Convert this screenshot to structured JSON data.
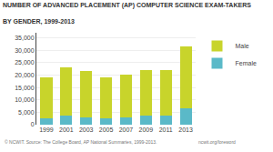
{
  "chart_data": {
    "type": "bar",
    "stacked": true,
    "title": "NUMBER OF ADVANCED PLACEMENT (AP) COMPUTER SCIENCE EXAM-TAKERS",
    "subtitle": "BY GENDER, 1999-2013",
    "categories": [
      "1999",
      "2001",
      "2003",
      "2005",
      "2007",
      "2009",
      "2011",
      "2013"
    ],
    "series": [
      {
        "name": "Female",
        "color": "#5ab9c8",
        "values": [
          2500,
          3500,
          3000,
          2500,
          3000,
          3500,
          3500,
          6500
        ]
      },
      {
        "name": "Male",
        "color": "#c8d42b",
        "values": [
          16500,
          19500,
          18500,
          16500,
          17000,
          18500,
          18500,
          25000
        ]
      }
    ],
    "ylim": [
      0,
      37000
    ],
    "yticks": [
      0,
      {
        "value": 5000,
        "label": "5,000"
      },
      {
        "value": 10000,
        "label": "10,000"
      },
      {
        "value": 15000,
        "label": "15,000"
      },
      {
        "value": 20000,
        "label": "20,000"
      },
      {
        "value": 25000,
        "label": "25,000"
      },
      {
        "value": 30000,
        "label": "30,000"
      },
      {
        "value": 35000,
        "label": "35,000"
      }
    ],
    "grid": true,
    "legend": "upper right",
    "annotations": [
      "© NCWIT. Source: The College Board, AP National Summaries, 1999-2013.",
      "ncwit.org/foreword"
    ]
  }
}
